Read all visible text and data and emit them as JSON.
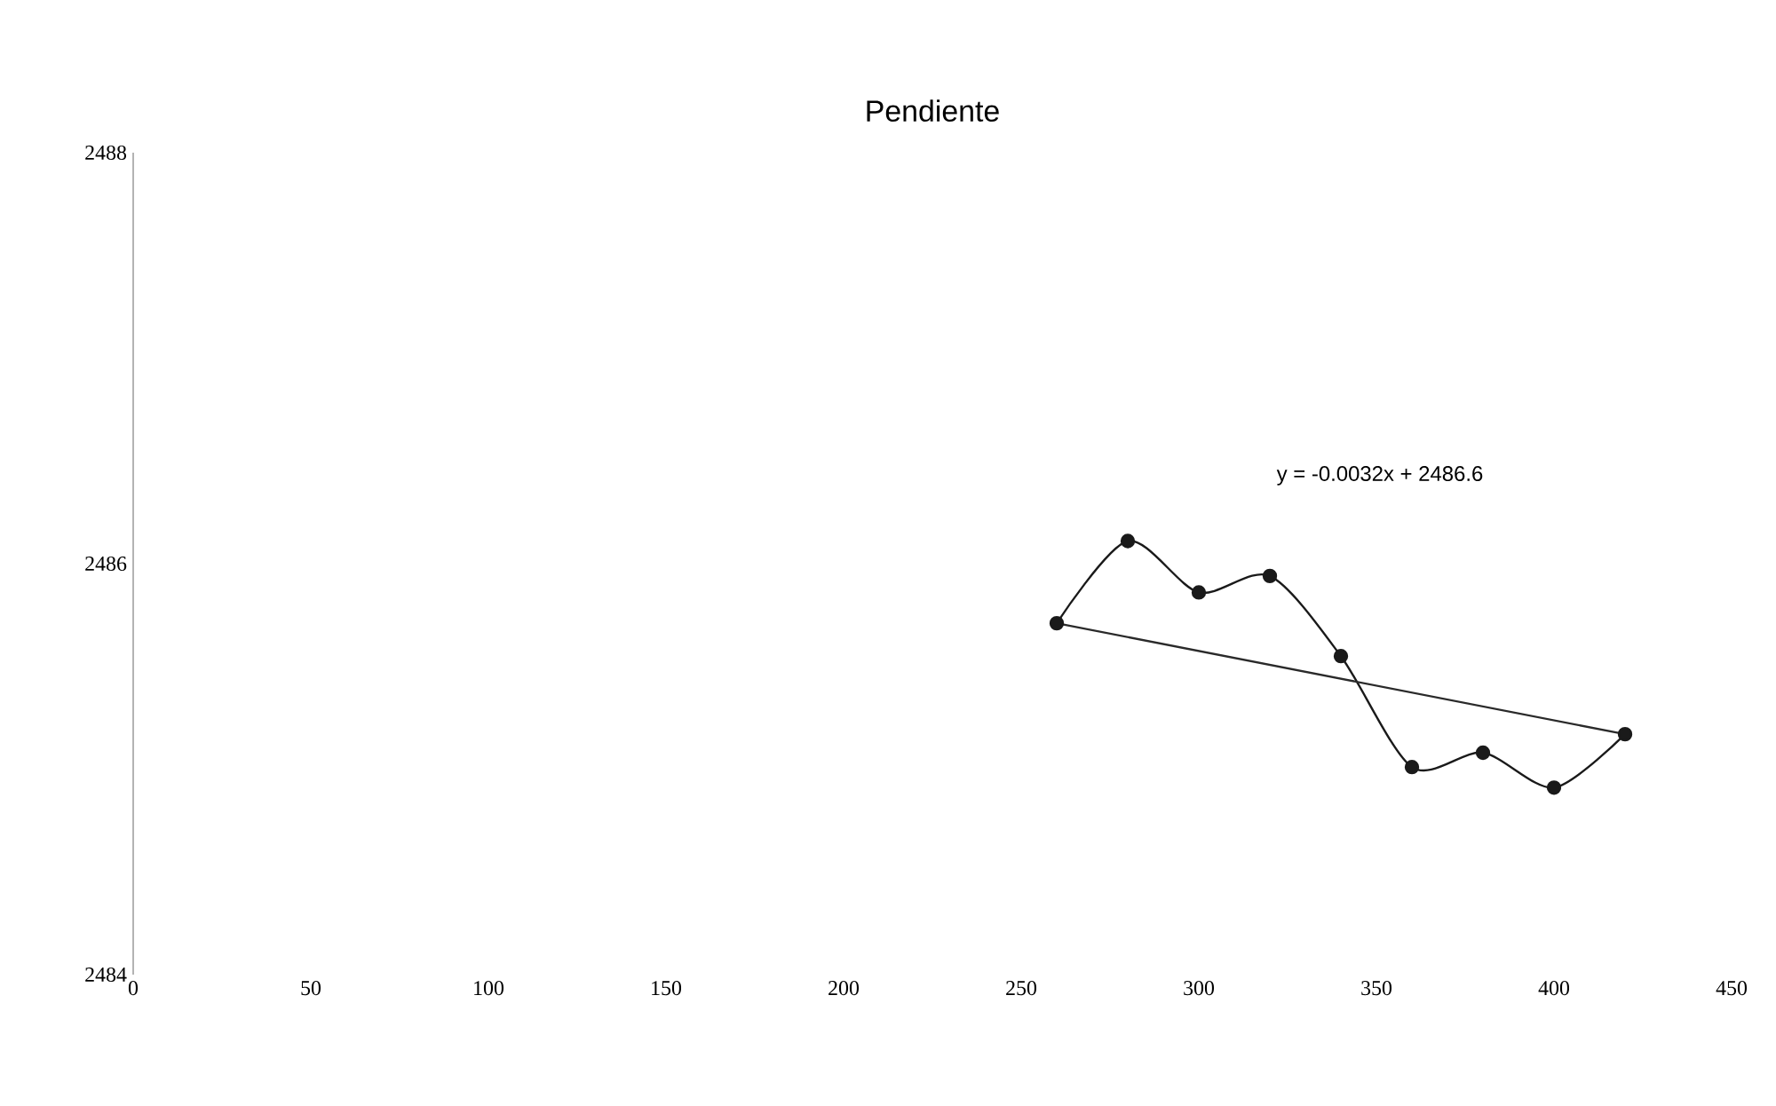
{
  "chart_data": {
    "type": "line",
    "title": "Pendiente",
    "x": [
      260,
      280,
      300,
      320,
      340,
      360,
      380,
      400,
      420
    ],
    "series": [
      {
        "color": "#1a1a1a",
        "marker": "circle",
        "values": [
          2485.71,
          2486.11,
          2485.86,
          2485.94,
          2485.55,
          2485.01,
          2485.08,
          2484.91,
          2485.17
        ]
      },
      {
        "color": "#2a2a2a",
        "marker": "none",
        "x": [
          260,
          420
        ],
        "values": [
          2485.71,
          2485.17
        ]
      }
    ],
    "annotations": [
      "y = -0.0032x + 2486.6"
    ],
    "xlim": [
      0,
      450
    ],
    "xticks": [
      0,
      50,
      100,
      150,
      200,
      250,
      300,
      350,
      400,
      450
    ],
    "ylim": [
      2484,
      2488
    ],
    "yticks": [
      2484,
      2486,
      2488
    ]
  }
}
